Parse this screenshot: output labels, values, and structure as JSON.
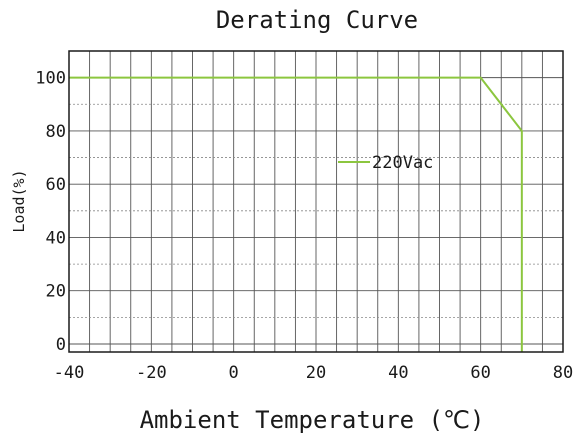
{
  "chart_data": {
    "type": "line",
    "title": "Derating Curve",
    "xlabel": "Ambient Temperature (℃)",
    "ylabel": "Load(%)",
    "xlim": [
      -40,
      80
    ],
    "ylim": [
      -3,
      110
    ],
    "x_ticks": [
      -40,
      -20,
      0,
      20,
      40,
      60,
      80
    ],
    "x_tick_labels": [
      "-40",
      "-20",
      "0",
      "20",
      "40",
      "60",
      "80"
    ],
    "y_ticks": [
      0,
      20,
      40,
      60,
      80,
      100
    ],
    "y_tick_labels": [
      "0",
      "20",
      "40",
      "60",
      "80",
      "100"
    ],
    "grid": true,
    "legend_placement": "center-right",
    "series": [
      {
        "name": "220Vac",
        "color": "#8cc63f",
        "x": [
          -40,
          60,
          70,
          70
        ],
        "y": [
          100,
          100,
          80,
          -3
        ]
      }
    ]
  }
}
